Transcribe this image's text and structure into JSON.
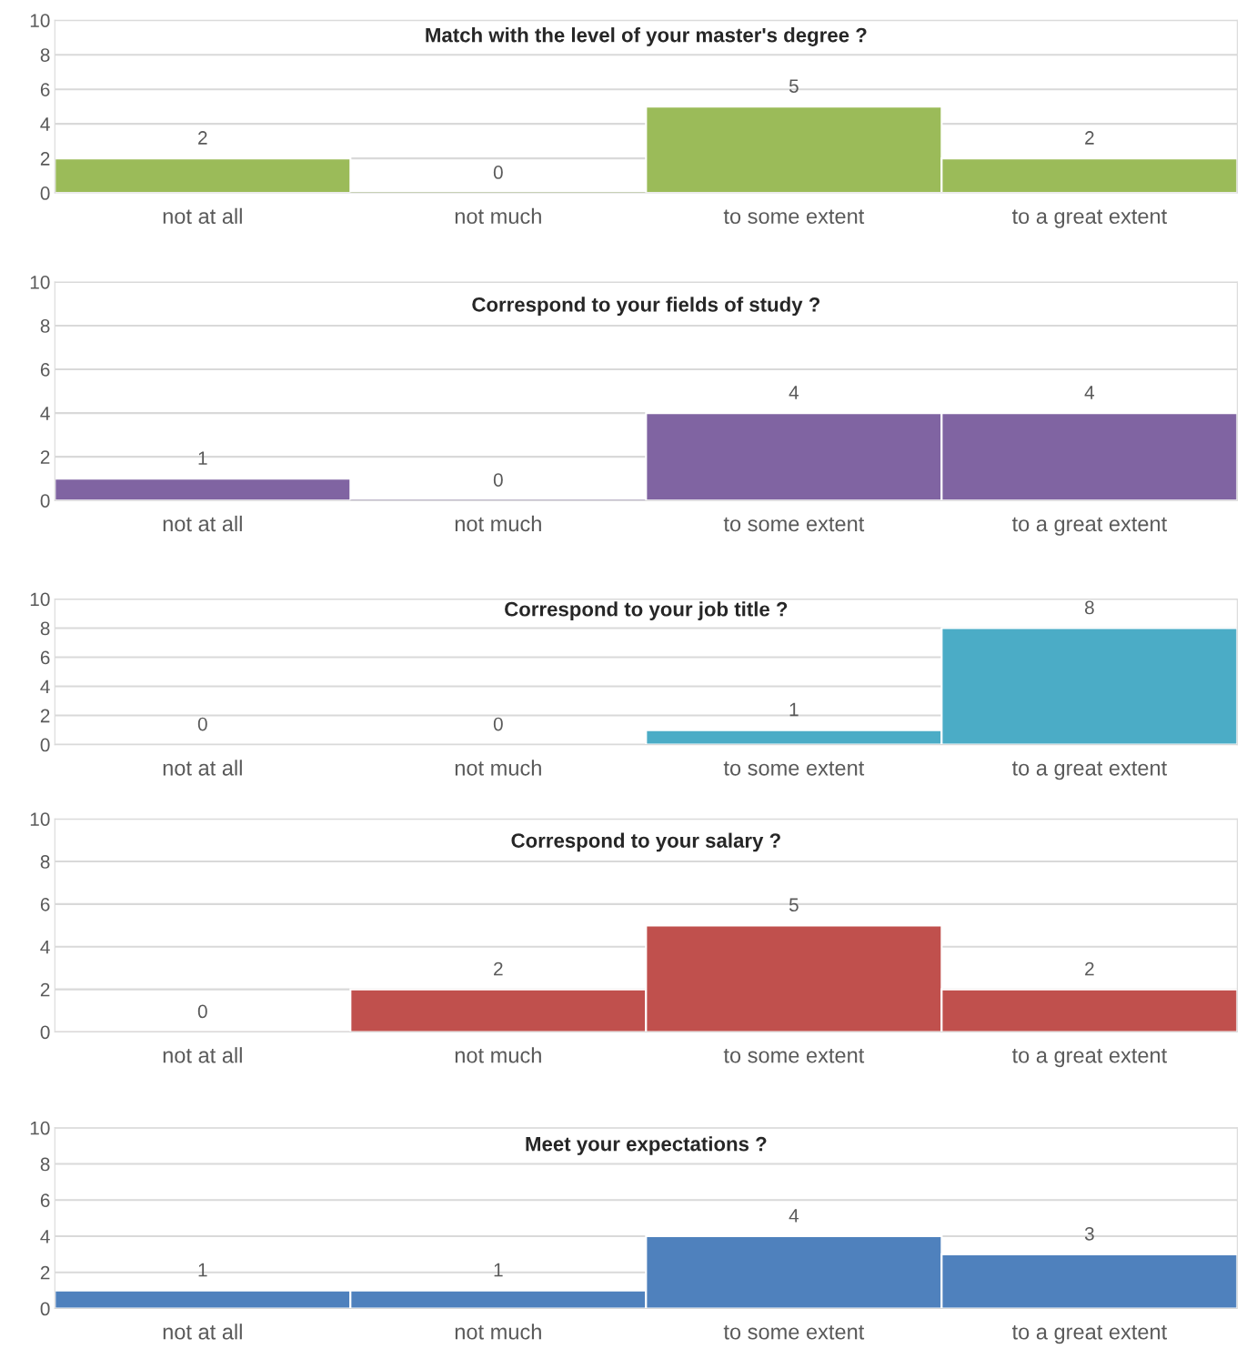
{
  "chart_data": [
    {
      "type": "bar",
      "title": "Match with the level of your master's degree ?",
      "categories": [
        "not at all",
        "not much",
        "to some extent",
        "to a great extent"
      ],
      "values": [
        2,
        0,
        5,
        2
      ],
      "color": "#9bbb59",
      "ylim": [
        0,
        10
      ],
      "yticks": [
        0,
        2,
        4,
        6,
        8,
        10
      ],
      "grid": "y",
      "data_labels": true
    },
    {
      "type": "bar",
      "title": "Correspond to your fields of study ?",
      "categories": [
        "not at all",
        "not much",
        "to some extent",
        "to a great extent"
      ],
      "values": [
        1,
        0,
        4,
        4
      ],
      "color": "#8064a2",
      "ylim": [
        0,
        10
      ],
      "yticks": [
        0,
        2,
        4,
        6,
        8,
        10
      ],
      "grid": "y",
      "data_labels": true
    },
    {
      "type": "bar",
      "title": "Correspond to your job title ?",
      "categories": [
        "not at all",
        "not much",
        "to some extent",
        "to a great extent"
      ],
      "values": [
        0,
        0,
        1,
        8
      ],
      "color": "#4bacc6",
      "ylim": [
        0,
        10
      ],
      "yticks": [
        0,
        2,
        4,
        6,
        8,
        10
      ],
      "grid": "y",
      "data_labels": true
    },
    {
      "type": "bar",
      "title": "Correspond to your salary ?",
      "categories": [
        "not at all",
        "not much",
        "to some extent",
        "to a great extent"
      ],
      "values": [
        0,
        2,
        5,
        2
      ],
      "color": "#c0504d",
      "ylim": [
        0,
        10
      ],
      "yticks": [
        0,
        2,
        4,
        6,
        8,
        10
      ],
      "grid": "y",
      "data_labels": true
    },
    {
      "type": "bar",
      "title": "Meet your expectations ?",
      "categories": [
        "not at all",
        "not much",
        "to some extent",
        "to a great extent"
      ],
      "values": [
        1,
        1,
        4,
        3
      ],
      "color": "#4f81bd",
      "ylim": [
        0,
        10
      ],
      "yticks": [
        0,
        2,
        4,
        6,
        8,
        10
      ],
      "grid": "y",
      "data_labels": true
    }
  ]
}
